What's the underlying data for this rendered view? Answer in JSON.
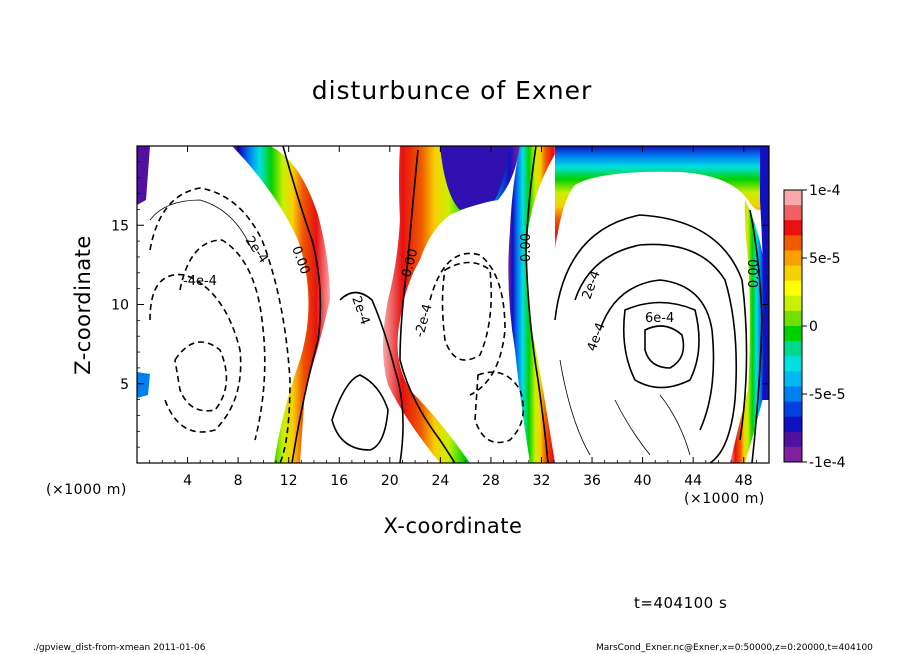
{
  "chart_data": {
    "type": "heatmap",
    "title": "disturbunce of Exner",
    "xlabel": "X-coordinate",
    "ylabel": "Z-coordinate",
    "x_unit": "(×1000 m)",
    "xlim": [
      0,
      50
    ],
    "ylim": [
      0,
      20
    ],
    "x_ticks": [
      4,
      8,
      12,
      16,
      20,
      24,
      28,
      32,
      36,
      40,
      44,
      48
    ],
    "y_ticks": [
      5,
      10,
      15
    ],
    "colorbar": {
      "min": -0.0001,
      "max": 0.0001,
      "tick_labels": [
        "1e-4",
        "5e-5",
        "0",
        "-5e-5",
        "-1e-4"
      ],
      "tick_values": [
        0.0001,
        5e-05,
        0,
        -5e-05,
        -0.0001
      ],
      "colors": [
        "#f7a8a8",
        "#f06060",
        "#e81010",
        "#f05a00",
        "#f7a000",
        "#f7d000",
        "#ffff00",
        "#c8f000",
        "#70e000",
        "#00d000",
        "#00d890",
        "#00e0e0",
        "#00b8f0",
        "#0080f0",
        "#0040e0",
        "#1010c0",
        "#5010a0",
        "#8020a0"
      ]
    },
    "contour_labels": [
      "0.00",
      "2e-4",
      "-4e-4",
      "-2e-4",
      "6e-4",
      "4e-4"
    ],
    "time_label": "t=404100 s",
    "series": []
  },
  "footer": {
    "left": "./gpview_dist-from-xmean   2011-01-06",
    "right": "MarsCond_Exner.nc@Exner,x=0:50000,z=0:20000,t=404100"
  }
}
